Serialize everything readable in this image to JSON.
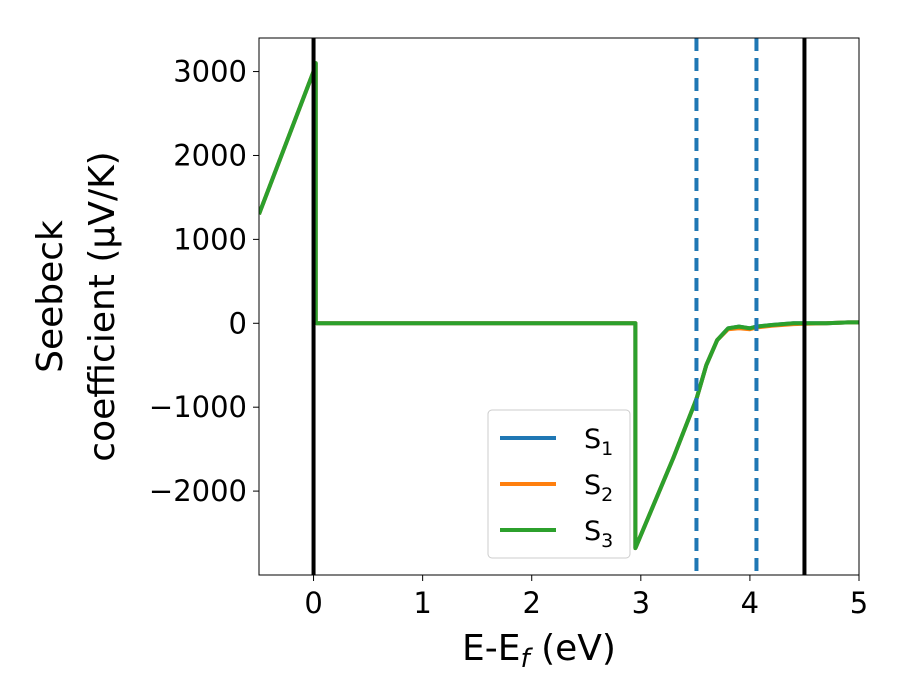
{
  "chart_data": {
    "type": "line",
    "title": "",
    "xlabel": {
      "main": "E-E",
      "sub": "f",
      "unit": " (eV)"
    },
    "ylabel": {
      "line1": "Seebeck",
      "line2": "coefficient  (μV/K)"
    },
    "xlim": [
      -0.5,
      5.0
    ],
    "ylim": [
      -3000,
      3400
    ],
    "xticks": [
      "0",
      "1",
      "2",
      "3",
      "4",
      "5"
    ],
    "yticks": [
      "−2000",
      "−1000",
      "0",
      "1000",
      "2000",
      "3000"
    ],
    "grid": false,
    "legend_position": "lower-center-right",
    "vlines": [
      {
        "x": 0.0,
        "style": "solid",
        "color": "#000000"
      },
      {
        "x": 4.5,
        "style": "solid",
        "color": "#000000"
      },
      {
        "x": 3.51,
        "style": "dashed",
        "color": "#1f77b4"
      },
      {
        "x": 4.06,
        "style": "dashed",
        "color": "#1f77b4"
      }
    ],
    "series": [
      {
        "name": "S",
        "sub": "1",
        "color": "#1f77b4",
        "x": [
          -0.5,
          0.0,
          0.02,
          0.02,
          0.03,
          1.0,
          2.0,
          2.95,
          2.95,
          3.3,
          3.51,
          3.6,
          3.7,
          3.8,
          3.9,
          4.0,
          4.06,
          4.2,
          4.4,
          4.5,
          4.7,
          4.9,
          5.0
        ],
        "values": [
          1300,
          3000,
          3100,
          10,
          0,
          0,
          0,
          0,
          -2680,
          -1600,
          -900,
          -500,
          -200,
          -60,
          -40,
          -60,
          -40,
          -20,
          0,
          0,
          0,
          10,
          10
        ]
      },
      {
        "name": "S",
        "sub": "2",
        "color": "#ff7f0e",
        "x": [
          -0.5,
          0.0,
          0.02,
          0.02,
          0.03,
          1.0,
          2.0,
          2.95,
          2.95,
          3.3,
          3.51,
          3.6,
          3.7,
          3.8,
          3.9,
          4.0,
          4.06,
          4.2,
          4.4,
          4.5,
          4.7,
          4.9,
          5.0
        ],
        "values": [
          1300,
          3000,
          3100,
          10,
          0,
          0,
          0,
          0,
          -2680,
          -1600,
          -900,
          -500,
          -200,
          -70,
          -60,
          -70,
          -50,
          -30,
          -10,
          -5,
          0,
          10,
          10
        ]
      },
      {
        "name": "S",
        "sub": "3",
        "color": "#2ca02c",
        "x": [
          -0.5,
          0.0,
          0.02,
          0.02,
          0.03,
          1.0,
          2.0,
          2.95,
          2.95,
          3.3,
          3.51,
          3.6,
          3.7,
          3.8,
          3.9,
          4.0,
          4.06,
          4.2,
          4.4,
          4.5,
          4.7,
          4.9,
          5.0
        ],
        "values": [
          1300,
          3000,
          3100,
          10,
          0,
          0,
          0,
          0,
          -2680,
          -1600,
          -900,
          -500,
          -200,
          -60,
          -40,
          -60,
          -40,
          -20,
          0,
          0,
          0,
          10,
          10
        ]
      }
    ]
  }
}
